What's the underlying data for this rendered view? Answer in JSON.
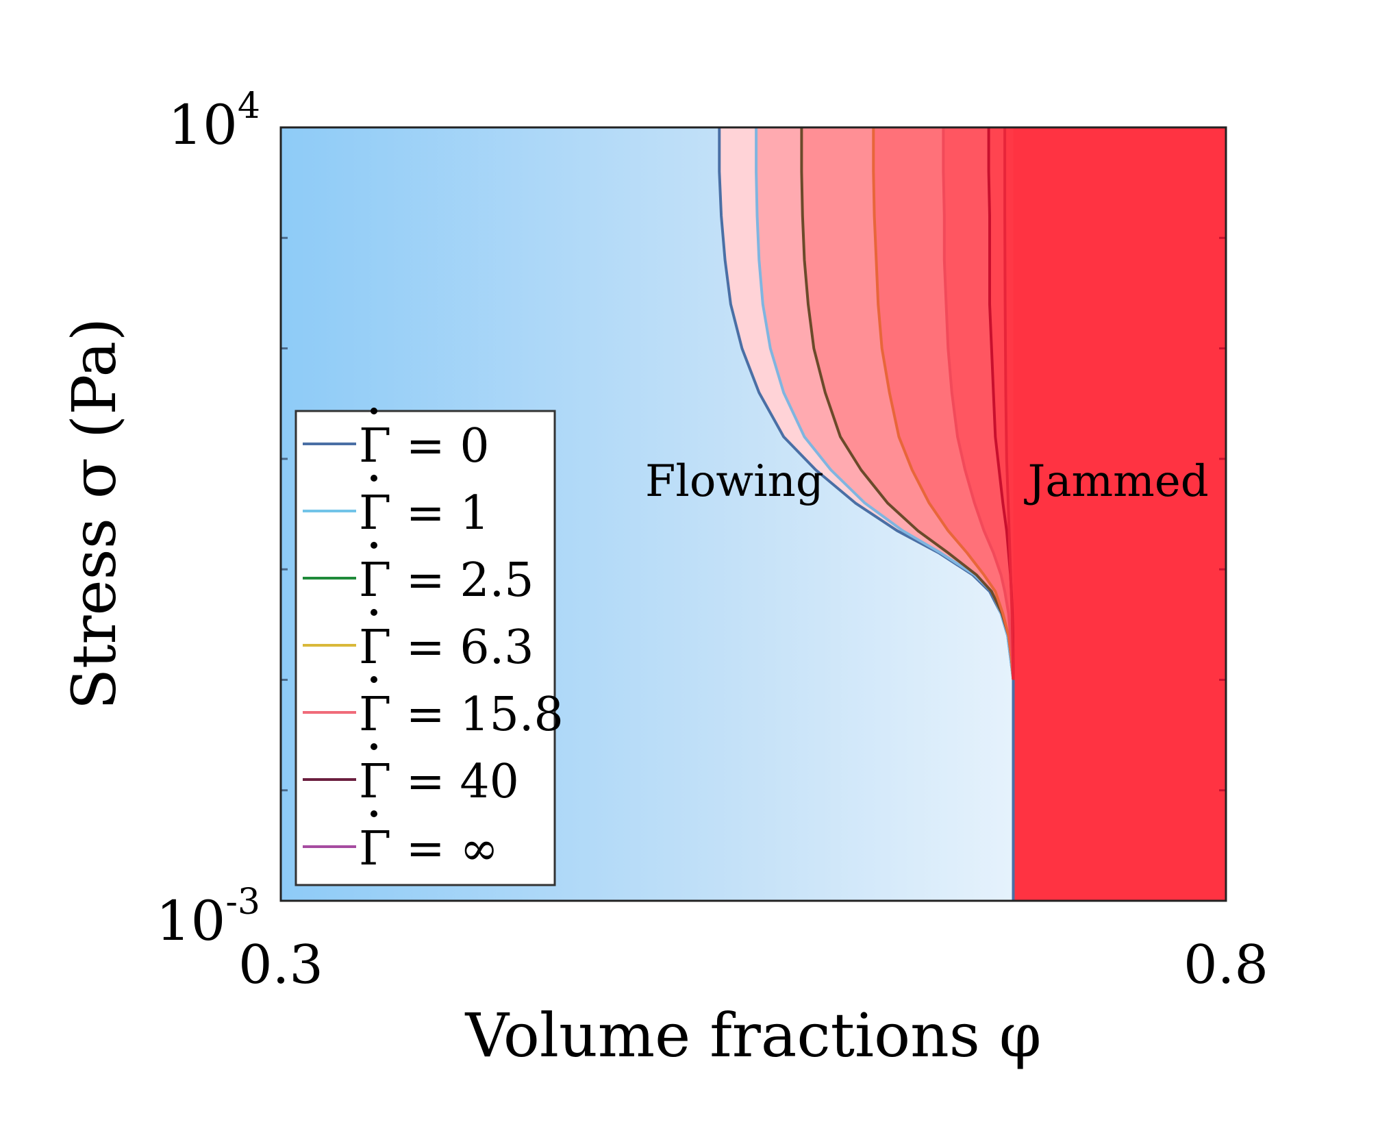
{
  "chart_data": {
    "type": "line",
    "xlabel": "Volume fractions φ",
    "ylabel": "Stress σ (Pa)",
    "xlim": [
      0.3,
      0.8
    ],
    "ylim_log10": [
      -3,
      4
    ],
    "x_ticks": [
      {
        "value": 0.3,
        "label": "0.3"
      },
      {
        "value": 0.8,
        "label": "0.8"
      }
    ],
    "y_ticks": [
      {
        "exp": -3,
        "base": "10",
        "sup": "-3"
      },
      {
        "exp": 4,
        "base": "10",
        "sup": "4"
      }
    ],
    "y_minor_exps": [
      -2,
      -1,
      0,
      1,
      2,
      3
    ],
    "regions": [
      {
        "name": "flowing",
        "label": "Flowing",
        "x": 0.54,
        "log10_y": 0.8
      },
      {
        "name": "jammed",
        "label": "Jammed",
        "x": 0.743,
        "log10_y": 0.8
      }
    ],
    "jamming_fraction": 0.6875,
    "legend_placement": "lower-left",
    "legend_symbol": "Γ",
    "series": [
      {
        "name": "Γ̇ = 0",
        "value_label": "0",
        "color": "#4a6fa5",
        "fill": "#ffd3d7",
        "points": [
          [
            0.532,
            4
          ],
          [
            0.532,
            3.6
          ],
          [
            0.533,
            3.2
          ],
          [
            0.535,
            2.8
          ],
          [
            0.538,
            2.4
          ],
          [
            0.544,
            2
          ],
          [
            0.553,
            1.6
          ],
          [
            0.566,
            1.2
          ],
          [
            0.583,
            0.9
          ],
          [
            0.604,
            0.6
          ],
          [
            0.626,
            0.35
          ],
          [
            0.648,
            0.15
          ],
          [
            0.666,
            -0.05
          ],
          [
            0.675,
            -0.2
          ],
          [
            0.681,
            -0.4
          ],
          [
            0.6845,
            -0.6
          ],
          [
            0.686,
            -0.8
          ],
          [
            0.6875,
            -1.0
          ],
          [
            0.6875,
            -3
          ]
        ]
      },
      {
        "name": "Γ̇ = 1",
        "value_label": "1",
        "color": "#7fb5e0",
        "fill": "#ffaab0",
        "points": [
          [
            0.5515,
            4
          ],
          [
            0.5515,
            3.6
          ],
          [
            0.552,
            3.2
          ],
          [
            0.553,
            2.8
          ],
          [
            0.555,
            2.4
          ],
          [
            0.559,
            2
          ],
          [
            0.566,
            1.6
          ],
          [
            0.577,
            1.2
          ],
          [
            0.591,
            0.9
          ],
          [
            0.609,
            0.6
          ],
          [
            0.629,
            0.35
          ],
          [
            0.649,
            0.15
          ],
          [
            0.667,
            -0.05
          ],
          [
            0.676,
            -0.2
          ],
          [
            0.681,
            -0.4
          ],
          [
            0.6845,
            -0.6
          ],
          [
            0.686,
            -0.8
          ],
          [
            0.6875,
            -1.0
          ]
        ]
      },
      {
        "name": "Γ̇ = 2.5",
        "value_label": "2.5",
        "color": "#6b4a2a",
        "fill": "#ff8f95",
        "points": [
          [
            0.5755,
            4
          ],
          [
            0.5755,
            3.6
          ],
          [
            0.576,
            3.2
          ],
          [
            0.577,
            2.8
          ],
          [
            0.579,
            2.4
          ],
          [
            0.582,
            2
          ],
          [
            0.588,
            1.6
          ],
          [
            0.596,
            1.2
          ],
          [
            0.607,
            0.9
          ],
          [
            0.621,
            0.6
          ],
          [
            0.637,
            0.35
          ],
          [
            0.653,
            0.15
          ],
          [
            0.668,
            -0.05
          ],
          [
            0.676,
            -0.2
          ],
          [
            0.6815,
            -0.4
          ],
          [
            0.685,
            -0.6
          ],
          [
            0.6865,
            -0.8
          ],
          [
            0.6875,
            -1.0
          ]
        ]
      },
      {
        "name": "Γ̇ = 6.3",
        "value_label": "6.3",
        "color": "#e8663a",
        "fill": "#ff7179",
        "points": [
          [
            0.6135,
            4
          ],
          [
            0.6135,
            3.6
          ],
          [
            0.614,
            3.2
          ],
          [
            0.615,
            2.8
          ],
          [
            0.616,
            2.4
          ],
          [
            0.618,
            2
          ],
          [
            0.622,
            1.6
          ],
          [
            0.627,
            1.2
          ],
          [
            0.634,
            0.9
          ],
          [
            0.643,
            0.6
          ],
          [
            0.653,
            0.35
          ],
          [
            0.663,
            0.15
          ],
          [
            0.672,
            -0.05
          ],
          [
            0.678,
            -0.2
          ],
          [
            0.682,
            -0.4
          ],
          [
            0.685,
            -0.6
          ],
          [
            0.6865,
            -0.8
          ],
          [
            0.6875,
            -1.0
          ]
        ]
      },
      {
        "name": "Γ̇ = 15.8",
        "value_label": "15.8",
        "color": "#f24a5a",
        "fill": "#ff5661",
        "points": [
          [
            0.6505,
            4
          ],
          [
            0.6505,
            3.6
          ],
          [
            0.651,
            3.2
          ],
          [
            0.651,
            2.8
          ],
          [
            0.652,
            2.4
          ],
          [
            0.653,
            2
          ],
          [
            0.655,
            1.6
          ],
          [
            0.658,
            1.2
          ],
          [
            0.662,
            0.9
          ],
          [
            0.667,
            0.6
          ],
          [
            0.672,
            0.35
          ],
          [
            0.677,
            0.15
          ],
          [
            0.681,
            -0.05
          ],
          [
            0.683,
            -0.2
          ],
          [
            0.685,
            -0.4
          ],
          [
            0.686,
            -0.6
          ],
          [
            0.687,
            -0.8
          ],
          [
            0.6875,
            -1.0
          ]
        ]
      },
      {
        "name": "Γ̇ = 40",
        "value_label": "40",
        "color": "#c8102e",
        "fill": "#ff4450",
        "points": [
          [
            0.6745,
            4
          ],
          [
            0.6745,
            3.6
          ],
          [
            0.675,
            3.2
          ],
          [
            0.675,
            2.8
          ],
          [
            0.675,
            2.4
          ],
          [
            0.676,
            2
          ],
          [
            0.677,
            1.6
          ],
          [
            0.678,
            1.2
          ],
          [
            0.68,
            0.9
          ],
          [
            0.682,
            0.6
          ],
          [
            0.684,
            0.35
          ],
          [
            0.685,
            0.15
          ],
          [
            0.686,
            -0.05
          ],
          [
            0.6865,
            -0.2
          ],
          [
            0.687,
            -0.4
          ],
          [
            0.6873,
            -0.6
          ],
          [
            0.6874,
            -0.8
          ],
          [
            0.6875,
            -1.0
          ]
        ]
      },
      {
        "name": "Γ̇ = ∞",
        "value_label": "∞",
        "color": "#e8253a",
        "fill": "#ff3846",
        "points": [
          [
            0.683,
            4
          ],
          [
            0.683,
            3.2
          ],
          [
            0.6832,
            2.4
          ],
          [
            0.6835,
            1.6
          ],
          [
            0.684,
            1.0
          ],
          [
            0.685,
            0.5
          ],
          [
            0.686,
            0.0
          ],
          [
            0.6868,
            -0.4
          ],
          [
            0.6872,
            -0.7
          ],
          [
            0.6875,
            -1.0
          ]
        ]
      }
    ],
    "legend_colors": [
      "#4a6fa5",
      "#72c4e8",
      "#1f8a3a",
      "#d9b83a",
      "#f06b7a",
      "#6b1f3f",
      "#a64ca0"
    ]
  }
}
